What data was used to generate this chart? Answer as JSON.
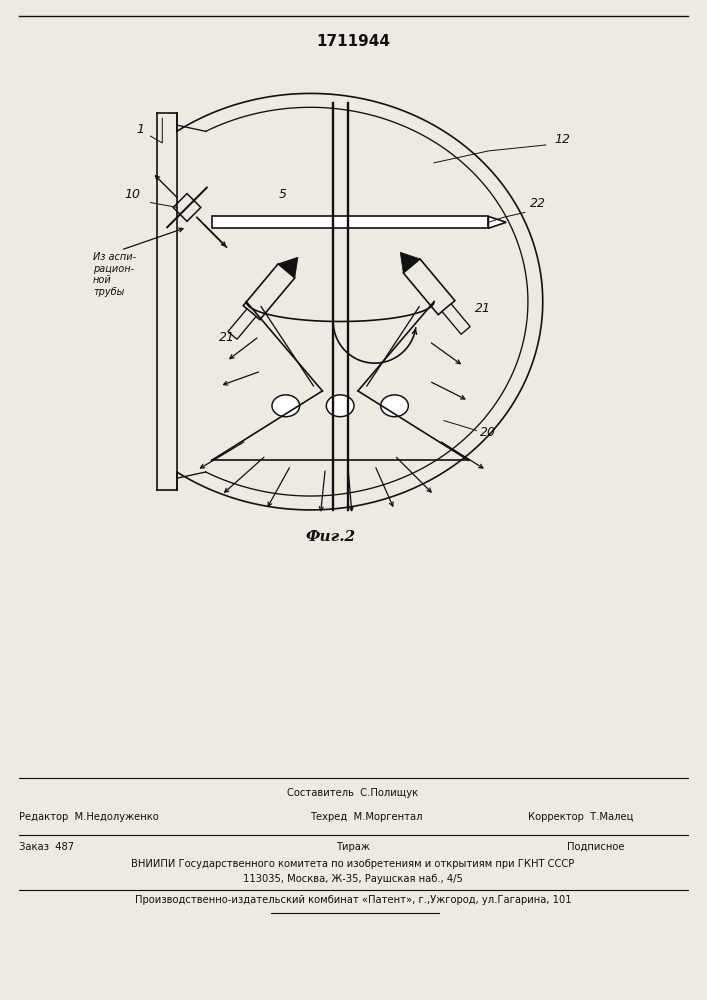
{
  "patent_number": "1711944",
  "fig_label": "Фиг.2",
  "bg": "#ede9e3",
  "lc": "#111111",
  "footer": {
    "sostavitel": "Составитель  С.Полищук",
    "redaktor": "Редактор  М.Недолуженко",
    "tehred": "Техред  М.Моргентал",
    "korrektor": "Корректор  Т.Малец",
    "zakaz": "Заказ  487",
    "tirazh": "Тираж",
    "podpisnoe": "Подписное",
    "vniipи": "ВНИИПИ Государственного комитета по изобретениям и открытиям при ГКНТ СССР",
    "addr": "113035, Москва, Ж-35, Раушская наб., 4/5",
    "proizv": "Производственно-издательский комбинат «Патент», г.,Ужгород, ул.Гагарина, 101"
  }
}
